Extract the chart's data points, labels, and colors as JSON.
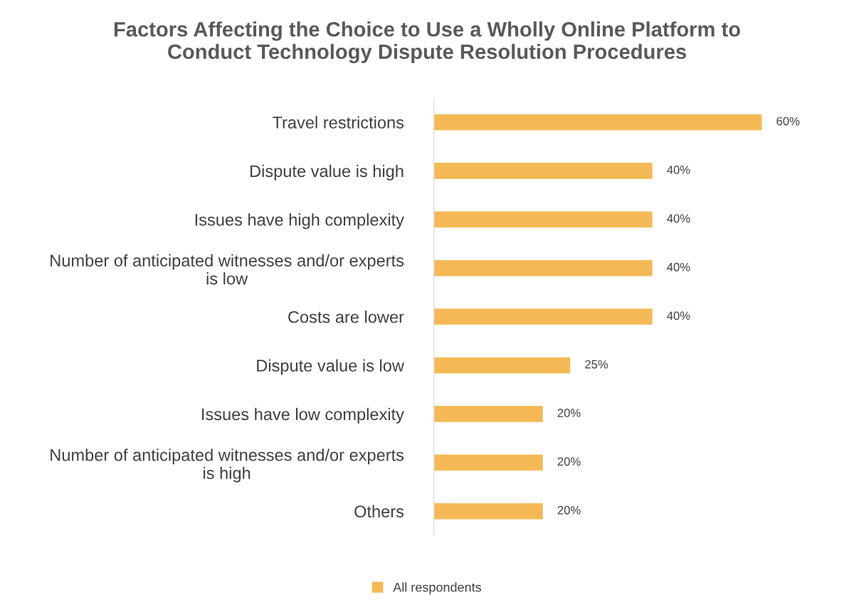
{
  "chart_data": {
    "type": "bar",
    "orientation": "horizontal",
    "title": "Factors Affecting the Choice to Use a Wholly Online Platform to\nConduct Technology Dispute Resolution Procedures",
    "categories": [
      "Travel restrictions",
      "Dispute value is high",
      "Issues have high complexity",
      "Number of anticipated witnesses and/or experts\nis low",
      "Costs are lower",
      "Dispute value is low",
      "Issues have low complexity",
      "Number of anticipated witnesses and/or experts\nis high",
      "Others"
    ],
    "series": [
      {
        "name": "All respondents",
        "color": "#f4b955",
        "values": [
          60,
          40,
          40,
          40,
          40,
          25,
          20,
          20,
          20
        ],
        "value_labels": [
          "60%",
          "40%",
          "40%",
          "40%",
          "40%",
          "25%",
          "20%",
          "20%",
          "20%"
        ]
      }
    ],
    "legend": "bottom",
    "grid": false
  }
}
